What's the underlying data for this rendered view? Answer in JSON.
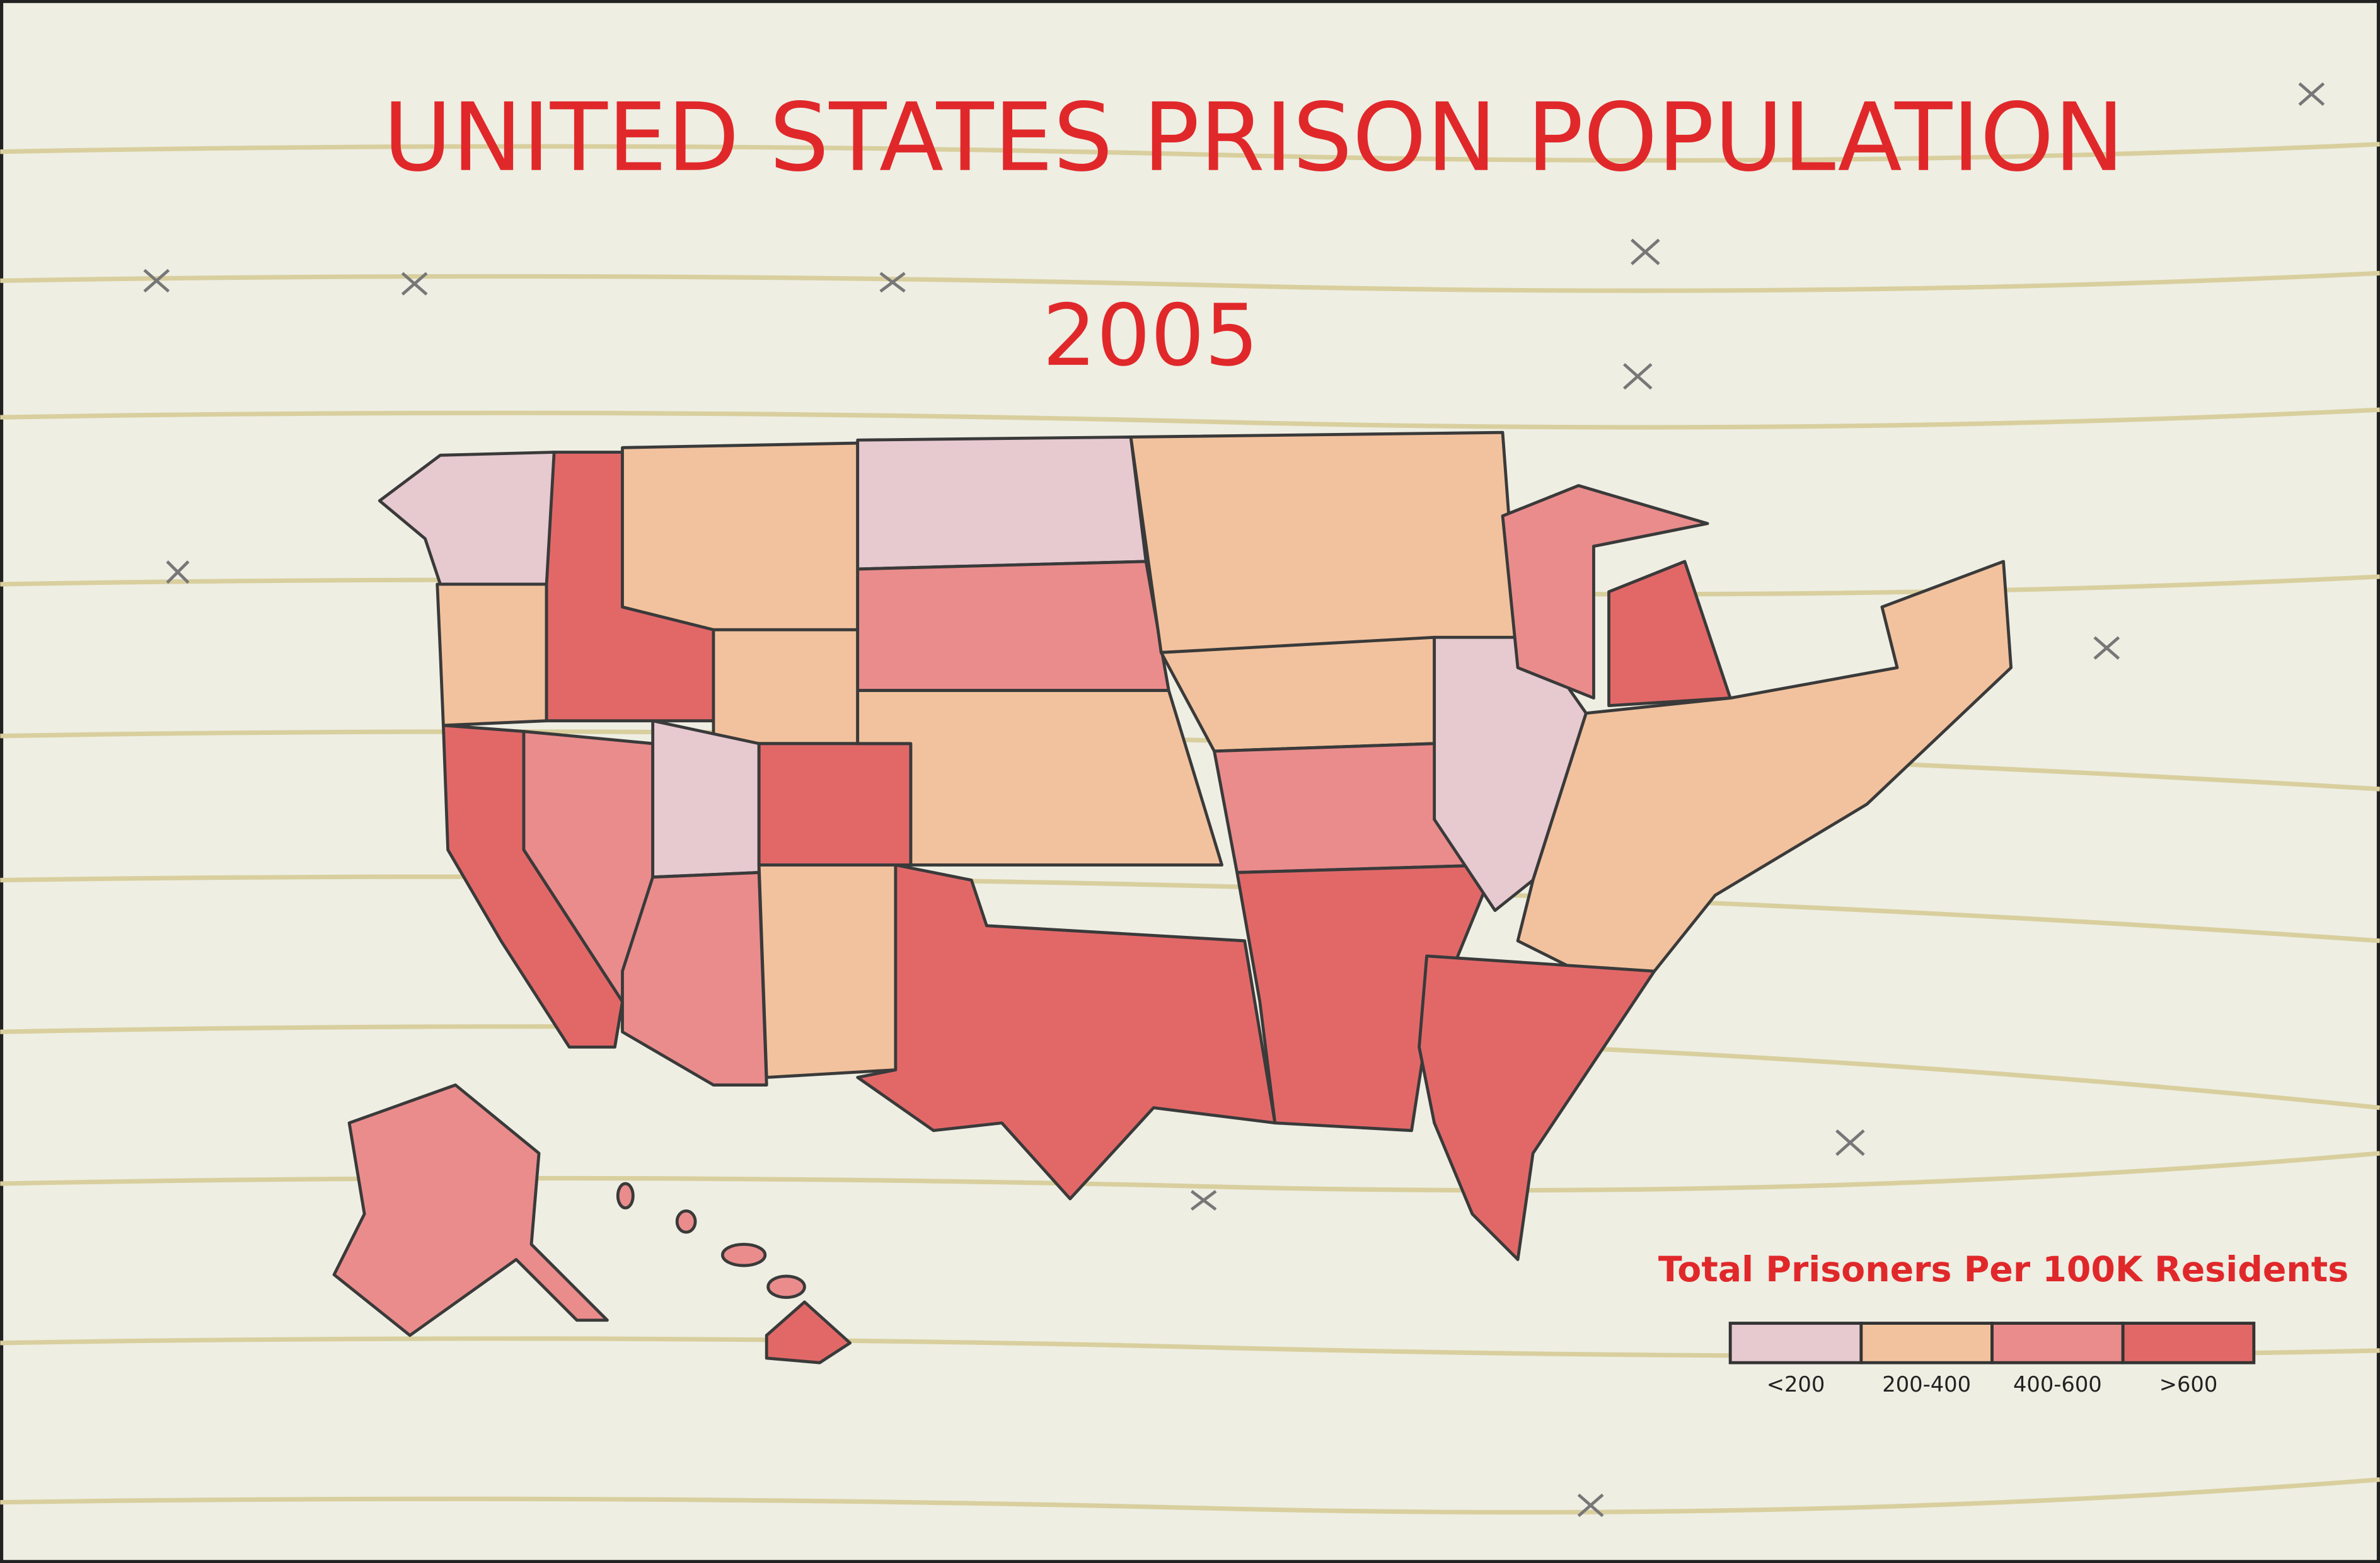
{
  "header": {
    "title": "UNITED STATES PRISON POPULATION",
    "subtitle": "2005"
  },
  "legend": {
    "title": "Total Prisoners Per 100K Residents",
    "items": [
      {
        "label": "<200",
        "color": "#e7c9d0"
      },
      {
        "label": "200-400",
        "color": "#f2c29e"
      },
      {
        "label": "400-600",
        "color": "#ea8c8c"
      },
      {
        "label": ">600",
        "color": "#e26868"
      }
    ]
  }
}
